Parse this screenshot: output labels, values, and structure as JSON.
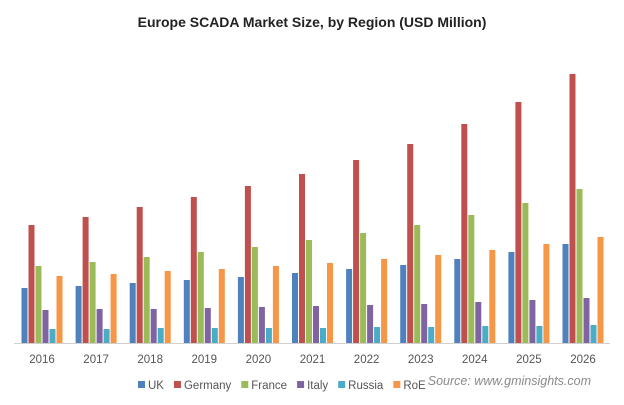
{
  "chart_data": {
    "type": "bar",
    "title": "Europe  SCADA  Market Size, by Region (USD Million)",
    "xlabel": "",
    "ylabel": "",
    "ylim": [
      0,
      283
    ],
    "grid": false,
    "legend_position": "bottom",
    "categories": [
      "2016",
      "2017",
      "2018",
      "2019",
      "2020",
      "2021",
      "2022",
      "2023",
      "2024",
      "2025",
      "2026"
    ],
    "series": [
      {
        "name": "UK",
        "color": "#4f81bd",
        "values": [
          55,
          57,
          60,
          63,
          66,
          70,
          74,
          78,
          84,
          91,
          99
        ]
      },
      {
        "name": "Germany",
        "color": "#c0504d",
        "values": [
          118,
          126,
          136,
          146,
          157,
          169,
          183,
          199,
          219,
          241,
          269
        ]
      },
      {
        "name": "France",
        "color": "#9bbb59",
        "values": [
          77,
          81,
          86,
          91,
          96,
          103,
          110,
          118,
          128,
          140,
          154
        ]
      },
      {
        "name": "Italy",
        "color": "#8064a2",
        "values": [
          33,
          34,
          34,
          35,
          36,
          37,
          38,
          39,
          41,
          43,
          45
        ]
      },
      {
        "name": "Russia",
        "color": "#4bacc6",
        "values": [
          14,
          14,
          15,
          15,
          15,
          15,
          16,
          16,
          17,
          17,
          18
        ]
      },
      {
        "name": "RoE",
        "color": "#f79646",
        "values": [
          67,
          69,
          72,
          74,
          77,
          80,
          84,
          88,
          93,
          99,
          106
        ]
      }
    ],
    "source": "Source: www.gminsights.com"
  }
}
